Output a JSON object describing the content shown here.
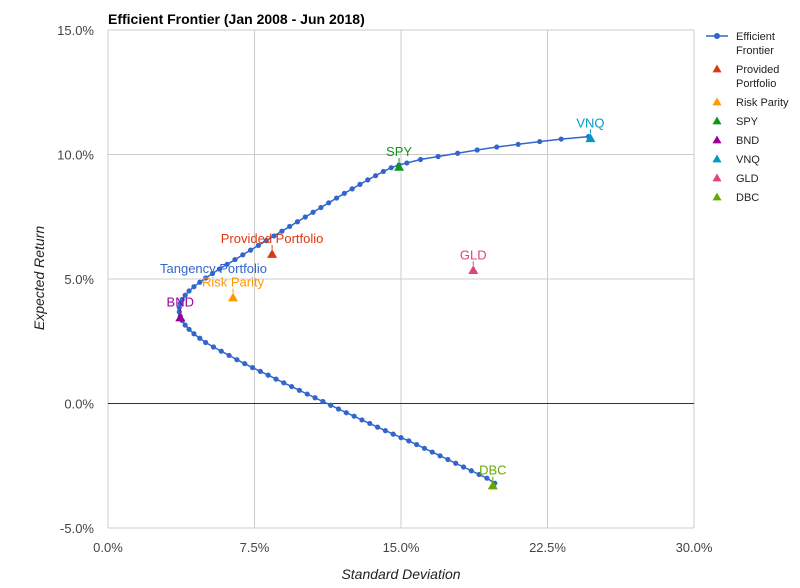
{
  "chart_data": {
    "type": "scatter",
    "title": "Efficient Frontier (Jan 2008 - Jun 2018)",
    "xlabel": "Standard Deviation",
    "ylabel": "Expected Return",
    "xlim": [
      0,
      30
    ],
    "ylim": [
      -5,
      15
    ],
    "x_ticks": [
      "0.0%",
      "7.5%",
      "15.0%",
      "22.5%",
      "30.0%"
    ],
    "y_ticks": [
      "-5.0%",
      "0.0%",
      "5.0%",
      "10.0%",
      "15.0%"
    ],
    "legend_position": "right",
    "grid": true,
    "frontier": {
      "name": "Efficient Frontier",
      "color": "#3366cc",
      "points": [
        [
          19.8,
          -3.2
        ],
        [
          19.4,
          -3.0
        ],
        [
          19.0,
          -2.85
        ],
        [
          18.6,
          -2.7
        ],
        [
          18.2,
          -2.55
        ],
        [
          17.8,
          -2.4
        ],
        [
          17.4,
          -2.25
        ],
        [
          17.0,
          -2.1
        ],
        [
          16.6,
          -1.95
        ],
        [
          16.2,
          -1.8
        ],
        [
          15.8,
          -1.65
        ],
        [
          15.4,
          -1.5
        ],
        [
          15.0,
          -1.37
        ],
        [
          14.6,
          -1.23
        ],
        [
          14.2,
          -1.09
        ],
        [
          13.8,
          -0.95
        ],
        [
          13.4,
          -0.8
        ],
        [
          13.0,
          -0.66
        ],
        [
          12.6,
          -0.51
        ],
        [
          12.2,
          -0.37
        ],
        [
          11.8,
          -0.22
        ],
        [
          11.4,
          -0.07
        ],
        [
          11.0,
          0.08
        ],
        [
          10.6,
          0.23
        ],
        [
          10.2,
          0.38
        ],
        [
          9.8,
          0.53
        ],
        [
          9.4,
          0.68
        ],
        [
          9.0,
          0.83
        ],
        [
          8.6,
          0.98
        ],
        [
          8.2,
          1.14
        ],
        [
          7.8,
          1.29
        ],
        [
          7.4,
          1.44
        ],
        [
          7.0,
          1.6
        ],
        [
          6.6,
          1.76
        ],
        [
          6.2,
          1.93
        ],
        [
          5.8,
          2.1
        ],
        [
          5.4,
          2.27
        ],
        [
          5.0,
          2.45
        ],
        [
          4.7,
          2.62
        ],
        [
          4.4,
          2.8
        ],
        [
          4.15,
          2.98
        ],
        [
          3.95,
          3.15
        ],
        [
          3.8,
          3.33
        ],
        [
          3.7,
          3.51
        ],
        [
          3.65,
          3.68
        ],
        [
          3.65,
          3.85
        ],
        [
          3.7,
          4.02
        ],
        [
          3.8,
          4.18
        ],
        [
          3.95,
          4.35
        ],
        [
          4.15,
          4.52
        ],
        [
          4.4,
          4.69
        ],
        [
          4.7,
          4.87
        ],
        [
          5.0,
          5.04
        ],
        [
          5.35,
          5.22
        ],
        [
          5.7,
          5.4
        ],
        [
          6.1,
          5.59
        ],
        [
          6.5,
          5.78
        ],
        [
          6.9,
          5.97
        ],
        [
          7.3,
          6.16
        ],
        [
          7.7,
          6.35
        ],
        [
          8.1,
          6.54
        ],
        [
          8.5,
          6.73
        ],
        [
          8.9,
          6.92
        ],
        [
          9.3,
          7.11
        ],
        [
          9.7,
          7.3
        ],
        [
          10.1,
          7.49
        ],
        [
          10.5,
          7.68
        ],
        [
          10.9,
          7.87
        ],
        [
          11.3,
          8.06
        ],
        [
          11.7,
          8.25
        ],
        [
          12.1,
          8.44
        ],
        [
          12.5,
          8.62
        ],
        [
          12.9,
          8.8
        ],
        [
          13.3,
          8.98
        ],
        [
          13.7,
          9.15
        ],
        [
          14.1,
          9.32
        ],
        [
          14.5,
          9.47
        ],
        [
          14.9,
          9.58
        ],
        [
          15.3,
          9.66
        ],
        [
          16.0,
          9.8
        ],
        [
          16.9,
          9.92
        ],
        [
          17.9,
          10.05
        ],
        [
          18.9,
          10.18
        ],
        [
          19.9,
          10.3
        ],
        [
          21.0,
          10.41
        ],
        [
          22.1,
          10.52
        ],
        [
          23.2,
          10.62
        ],
        [
          24.6,
          10.72
        ]
      ]
    },
    "assets": [
      {
        "name": "Provided Portfolio",
        "legend": [
          "Provided",
          "Portfolio"
        ],
        "label": "Provided Portfolio",
        "x": 8.4,
        "y": 6.0,
        "color": "#dc3912"
      },
      {
        "name": "Risk Parity",
        "legend": [
          "Risk Parity"
        ],
        "label": "Risk Parity",
        "x": 6.4,
        "y": 4.25,
        "color": "#ff9900"
      },
      {
        "name": "SPY",
        "legend": [
          "SPY"
        ],
        "label": "SPY",
        "x": 14.9,
        "y": 9.5,
        "color": "#109618"
      },
      {
        "name": "BND",
        "legend": [
          "BND"
        ],
        "label": "BND",
        "x": 3.7,
        "y": 3.45,
        "color": "#990099"
      },
      {
        "name": "VNQ",
        "legend": [
          "VNQ"
        ],
        "label": "VNQ",
        "x": 24.7,
        "y": 10.65,
        "color": "#0099c6"
      },
      {
        "name": "GLD",
        "legend": [
          "GLD"
        ],
        "label": "GLD",
        "x": 18.7,
        "y": 5.35,
        "color": "#dd4477"
      },
      {
        "name": "DBC",
        "legend": [
          "DBC"
        ],
        "label": "DBC",
        "x": 19.7,
        "y": -3.3,
        "color": "#66aa00"
      }
    ],
    "annotations": [
      {
        "label": "Tangency Portfolio",
        "x": 5.4,
        "y": 5.2,
        "color": "#3366cc"
      }
    ],
    "legend_frontier": [
      "Efficient",
      "Frontier"
    ]
  }
}
